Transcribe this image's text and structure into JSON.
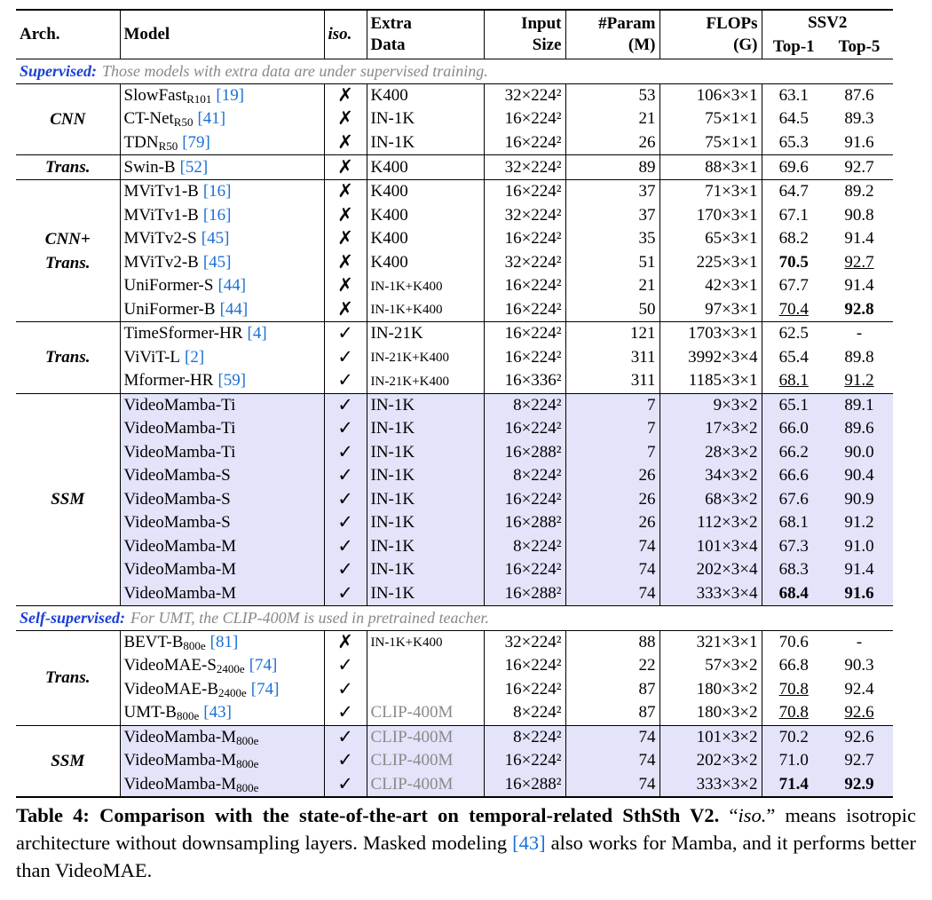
{
  "header": {
    "arch": "Arch.",
    "model": "Model",
    "iso": "iso.",
    "extra": [
      "Extra",
      "Data"
    ],
    "input": [
      "Input",
      "Size"
    ],
    "params": [
      "#Param",
      "(M)"
    ],
    "flops": [
      "FLOPs",
      "(G)"
    ],
    "ssv2": "SSV2",
    "top1": "Top-1",
    "top5": "Top-5"
  },
  "sections": [
    {
      "label": "Supervised:",
      "note": "Those models with extra data are under supervised training.",
      "groups": [
        {
          "arch": [
            "CNN"
          ],
          "rows": [
            {
              "model": "SlowFast",
              "sub": "R101",
              "cite": "[19]",
              "iso": "✗",
              "extra": "K400",
              "input": "32×224²",
              "params": "53",
              "flops": "106×3×1",
              "top1": "63.1",
              "top5": "87.6"
            },
            {
              "model": "CT-Net",
              "sub": "R50",
              "cite": "[41]",
              "iso": "✗",
              "extra": "IN-1K",
              "input": "16×224²",
              "params": "21",
              "flops": "75×1×1",
              "top1": "64.5",
              "top5": "89.3"
            },
            {
              "model": "TDN",
              "sub": "R50",
              "cite": "[79]",
              "iso": "✗",
              "extra": "IN-1K",
              "input": "16×224²",
              "params": "26",
              "flops": "75×1×1",
              "top1": "65.3",
              "top5": "91.6"
            }
          ]
        },
        {
          "arch": [
            "Trans."
          ],
          "rows": [
            {
              "model": "Swin-B",
              "cite": "[52]",
              "iso": "✗",
              "extra": "K400",
              "input": "32×224²",
              "params": "89",
              "flops": "88×3×1",
              "top1": "69.6",
              "top5": "92.7"
            }
          ]
        },
        {
          "arch": [
            "CNN+",
            "Trans."
          ],
          "rows": [
            {
              "model": "MViTv1-B",
              "cite": "[16]",
              "iso": "✗",
              "extra": "K400",
              "input": "16×224²",
              "params": "37",
              "flops": "71×3×1",
              "top1": "64.7",
              "top5": "89.2"
            },
            {
              "model": "MViTv1-B",
              "cite": "[16]",
              "iso": "✗",
              "extra": "K400",
              "input": "32×224²",
              "params": "37",
              "flops": "170×3×1",
              "top1": "67.1",
              "top5": "90.8"
            },
            {
              "model": "MViTv2-S",
              "cite": "[45]",
              "iso": "✗",
              "extra": "K400",
              "input": "16×224²",
              "params": "35",
              "flops": "65×3×1",
              "top1": "68.2",
              "top5": "91.4"
            },
            {
              "model": "MViTv2-B",
              "cite": "[45]",
              "iso": "✗",
              "extra": "K400",
              "input": "32×224²",
              "params": "51",
              "flops": "225×3×1",
              "top1": "70.5",
              "top5": "92.7",
              "bold": [
                "top1"
              ],
              "underline": [
                "top5"
              ]
            },
            {
              "model": "UniFormer-S",
              "cite": "[44]",
              "iso": "✗",
              "extra": "IN-1K+K400",
              "extra_style": "small",
              "input": "16×224²",
              "params": "21",
              "flops": "42×3×1",
              "top1": "67.7",
              "top5": "91.4"
            },
            {
              "model": "UniFormer-B",
              "cite": "[44]",
              "iso": "✗",
              "extra": "IN-1K+K400",
              "extra_style": "small",
              "input": "16×224²",
              "params": "50",
              "flops": "97×3×1",
              "top1": "70.4",
              "top5": "92.8",
              "bold": [
                "top5"
              ],
              "underline": [
                "top1"
              ]
            }
          ]
        },
        {
          "arch": [
            "Trans."
          ],
          "rows": [
            {
              "model": "TimeSformer-HR",
              "cite": "[4]",
              "iso": "✓",
              "extra": "IN-21K",
              "input": "16×224²",
              "params": "121",
              "flops": "1703×3×1",
              "top1": "62.5",
              "top5": "-"
            },
            {
              "model": "ViViT-L",
              "cite": "[2]",
              "iso": "✓",
              "extra": "IN-21K+K400",
              "extra_style": "small",
              "input": "16×224²",
              "params": "311",
              "flops": "3992×3×4",
              "top1": "65.4",
              "top5": "89.8"
            },
            {
              "model": "Mformer-HR",
              "cite": "[59]",
              "iso": "✓",
              "extra": "IN-21K+K400",
              "extra_style": "small",
              "input": "16×336²",
              "params": "311",
              "flops": "1185×3×1",
              "top1": "68.1",
              "top5": "91.2",
              "underline": [
                "top1",
                "top5"
              ]
            }
          ]
        },
        {
          "arch": [
            "SSM"
          ],
          "shaded": true,
          "rows": [
            {
              "model": "VideoMamba-Ti",
              "iso": "✓",
              "extra": "IN-1K",
              "input": "8×224²",
              "params": "7",
              "flops": "9×3×2",
              "top1": "65.1",
              "top5": "89.1"
            },
            {
              "model": "VideoMamba-Ti",
              "iso": "✓",
              "extra": "IN-1K",
              "input": "16×224²",
              "params": "7",
              "flops": "17×3×2",
              "top1": "66.0",
              "top5": "89.6"
            },
            {
              "model": "VideoMamba-Ti",
              "iso": "✓",
              "extra": "IN-1K",
              "input": "16×288²",
              "params": "7",
              "flops": "28×3×2",
              "top1": "66.2",
              "top5": "90.0"
            },
            {
              "model": "VideoMamba-S",
              "iso": "✓",
              "extra": "IN-1K",
              "input": "8×224²",
              "params": "26",
              "flops": "34×3×2",
              "top1": "66.6",
              "top5": "90.4"
            },
            {
              "model": "VideoMamba-S",
              "iso": "✓",
              "extra": "IN-1K",
              "input": "16×224²",
              "params": "26",
              "flops": "68×3×2",
              "top1": "67.6",
              "top5": "90.9"
            },
            {
              "model": "VideoMamba-S",
              "iso": "✓",
              "extra": "IN-1K",
              "input": "16×288²",
              "params": "26",
              "flops": "112×3×2",
              "top1": "68.1",
              "top5": "91.2"
            },
            {
              "model": "VideoMamba-M",
              "iso": "✓",
              "extra": "IN-1K",
              "input": "8×224²",
              "params": "74",
              "flops": "101×3×4",
              "top1": "67.3",
              "top5": "91.0"
            },
            {
              "model": "VideoMamba-M",
              "iso": "✓",
              "extra": "IN-1K",
              "input": "16×224²",
              "params": "74",
              "flops": "202×3×4",
              "top1": "68.3",
              "top5": "91.4"
            },
            {
              "model": "VideoMamba-M",
              "iso": "✓",
              "extra": "IN-1K",
              "input": "16×288²",
              "params": "74",
              "flops": "333×3×4",
              "top1": "68.4",
              "top5": "91.6",
              "bold": [
                "top1",
                "top5"
              ]
            }
          ]
        }
      ]
    },
    {
      "label": "Self-supervised:",
      "note": "For UMT, the CLIP-400M is used in pretrained teacher.",
      "groups": [
        {
          "arch": [
            "Trans."
          ],
          "rows": [
            {
              "model": "BEVT-B",
              "sub": "800e",
              "cite": "[81]",
              "iso": "✗",
              "extra": "IN-1K+K400",
              "extra_style": "small",
              "input": "32×224²",
              "params": "88",
              "flops": "321×3×1",
              "top1": "70.6",
              "top5": "-"
            },
            {
              "model": "VideoMAE-S",
              "sub": "2400e",
              "cite": "[74]",
              "iso": "✓",
              "input": "16×224²",
              "params": "22",
              "flops": "57×3×2",
              "top1": "66.8",
              "top5": "90.3"
            },
            {
              "model": "VideoMAE-B",
              "sub": "2400e",
              "cite": "[74]",
              "iso": "✓",
              "input": "16×224²",
              "params": "87",
              "flops": "180×3×2",
              "top1": "70.8",
              "top5": "92.4",
              "underline": [
                "top1"
              ]
            },
            {
              "model": "UMT-B",
              "sub": "800e",
              "cite": "[43]",
              "iso": "✓",
              "extra": "CLIP-400M",
              "extra_style": "gray",
              "input": "8×224²",
              "params": "87",
              "flops": "180×3×2",
              "top1": "70.8",
              "top5": "92.6",
              "underline": [
                "top1",
                "top5"
              ]
            }
          ]
        },
        {
          "arch": [
            "SSM"
          ],
          "shaded": true,
          "rows": [
            {
              "model": "VideoMamba-M",
              "sub": "800e",
              "iso": "✓",
              "extra": "CLIP-400M",
              "extra_style": "gray",
              "input": "8×224²",
              "params": "74",
              "flops": "101×3×2",
              "top1": "70.2",
              "top5": "92.6"
            },
            {
              "model": "VideoMamba-M",
              "sub": "800e",
              "iso": "✓",
              "extra": "CLIP-400M",
              "extra_style": "gray",
              "input": "16×224²",
              "params": "74",
              "flops": "202×3×2",
              "top1": "71.0",
              "top5": "92.7"
            },
            {
              "model": "VideoMamba-M",
              "sub": "800e",
              "iso": "✓",
              "extra": "CLIP-400M",
              "extra_style": "gray",
              "input": "16×288²",
              "params": "74",
              "flops": "333×3×2",
              "top1": "71.4",
              "top5": "92.9",
              "bold": [
                "top1",
                "top5"
              ]
            }
          ]
        }
      ]
    }
  ],
  "caption": [
    {
      "text": "Table 4: Comparison with the state-of-the-art on temporal-related SthSth V2.",
      "style": "bold"
    },
    {
      "text": " “"
    },
    {
      "text": "iso.",
      "style": "italic"
    },
    {
      "text": "” means isotropic architecture without downsampling layers. Masked modeling "
    },
    {
      "text": "[43]",
      "style": "cite"
    },
    {
      "text": " also works for Mamba, and it performs better than VideoMAE."
    }
  ]
}
